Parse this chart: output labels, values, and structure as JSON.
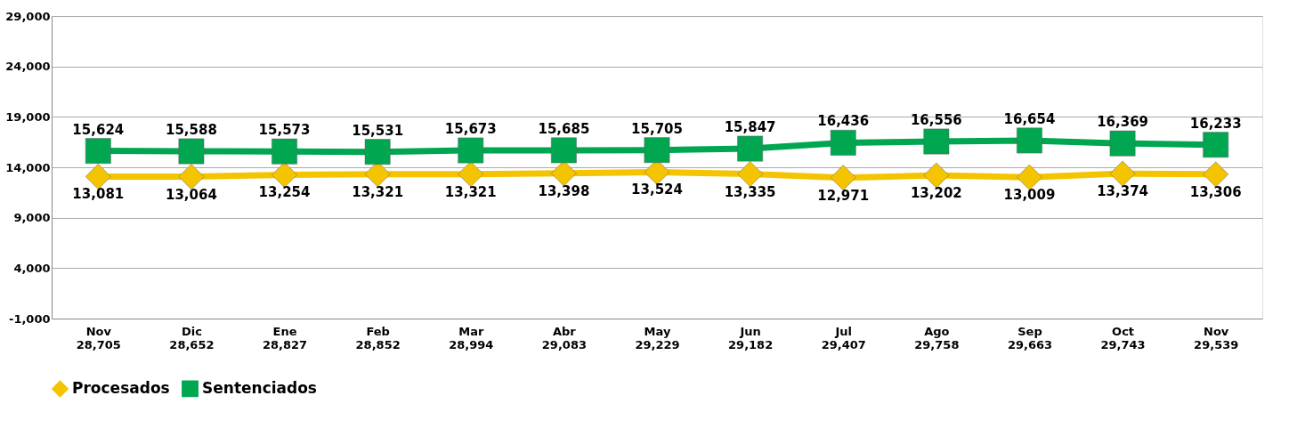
{
  "chart_data": {
    "type": "line",
    "categories": [
      "Nov",
      "Dic",
      "Ene",
      "Feb",
      "Mar",
      "Abr",
      "May",
      "Jun",
      "Jul",
      "Ago",
      "Sep",
      "Oct",
      "Nov"
    ],
    "series": [
      {
        "name": "Procesados",
        "color": "#f5c400",
        "marker": "diamond",
        "values": [
          13081,
          13064,
          13254,
          13321,
          13321,
          13398,
          13524,
          13335,
          12971,
          13202,
          13009,
          13374,
          13306
        ],
        "value_labels": [
          "13,081",
          "13,064",
          "13,254",
          "13,321",
          "13,321",
          "13,398",
          "13,524",
          "13,335",
          "12,971",
          "13,202",
          "13,009",
          "13,374",
          "13,306"
        ]
      },
      {
        "name": "Sentenciados",
        "color": "#00a650",
        "marker": "square",
        "values": [
          15624,
          15588,
          15573,
          15531,
          15673,
          15685,
          15705,
          15847,
          16436,
          16556,
          16654,
          16369,
          16233
        ],
        "value_labels": [
          "15,624",
          "15,588",
          "15,573",
          "15,531",
          "15,673",
          "15,685",
          "15,705",
          "15,847",
          "16,436",
          "16,556",
          "16,654",
          "16,369",
          "16,233"
        ]
      }
    ],
    "totals": [
      "28,705",
      "28,652",
      "28,827",
      "28,852",
      "28,994",
      "29,083",
      "29,229",
      "29,182",
      "29,407",
      "29,758",
      "29,663",
      "29,743",
      "29,539"
    ],
    "ylim": [
      -1000,
      29000
    ],
    "yticks": [
      {
        "value": -1000,
        "label": "-1,000"
      },
      {
        "value": 4000,
        "label": "4,000"
      },
      {
        "value": 9000,
        "label": "9,000"
      },
      {
        "value": 14000,
        "label": "14,000"
      },
      {
        "value": 19000,
        "label": "19,000"
      },
      {
        "value": 24000,
        "label": "24,000"
      },
      {
        "value": 29000,
        "label": "29,000"
      }
    ],
    "grid": "y",
    "legend": "bottom",
    "line_style": "solid"
  }
}
